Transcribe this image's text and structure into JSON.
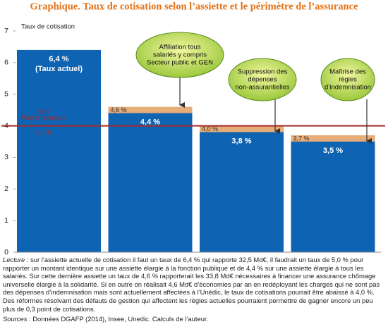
{
  "chart_data": {
    "type": "bar",
    "title": "Graphique. Taux de cotisation selon l’assiette et le périmètre de l’assurance",
    "y_label": "Taux de cotisation",
    "ylim": [
      0,
      7
    ],
    "yticks": [
      0,
      1,
      2,
      3,
      4,
      5,
      6,
      7
    ],
    "series": [
      {
        "color": "#e7ad78",
        "values": [
          null,
          4.6,
          4.0,
          3.7
        ],
        "value_labels": [
          null,
          "4,6 %",
          "4,0 %",
          "3,7 %"
        ]
      },
      {
        "color": "#0f63b3",
        "values": [
          6.4,
          4.4,
          3.8,
          3.5
        ],
        "value_labels": [
          "6,4 %",
          "4,4 %",
          "3,8 %",
          "3,5 %"
        ]
      }
    ],
    "current_rate_note": "(Taux actuel)",
    "reference_line": {
      "value": 4.0,
      "color": "#a52a2a",
      "label_lines": [
        "dont",
        "Part employeur"
      ],
      "value_label": "4,0 %"
    },
    "callouts": [
      {
        "lines": [
          "Affiliation tous",
          "salariés y compris",
          "Secteur public et GEN"
        ]
      },
      {
        "lines": [
          "Suppression des",
          "dépenses",
          "non-assurantielles"
        ]
      },
      {
        "lines": [
          "Maîtrise des",
          "règles",
          "d’indemnisation"
        ]
      }
    ],
    "lecture_label": "Lecture",
    "lecture_text": " : sur l’assiette actuelle de cotisation il faut un taux de 6,4 % qui rapporte 32,5 Md€, il faudrait un taux de 5,0 % pour rapporter un montant identique sur une assiette élargie à la fonction publique et de 4,4 % sur une assiette élargie à tous les salariés. Sur cette dernière assiette un taux de 4,6 % rapporterait les 33,8 Md€ nécessaires à financer une assurance chômage universelle élargie à la solidarité. Si en outre on réalisait 4,6 Md€ d’économies par an en redéployant les charges qui ne sont pas des dépenses d’indemnisation mais sont actuellement affectées à l’Unédic, le taux de cotisations pourrait être abaissé à 4,0 %. Des réformes résolvant des défauts de gestion qui affectent les règles actuelles pourraient permettre de gagner encore un peu plus de 0,3 point de cotisations.",
    "sources_label": "Sources",
    "sources_text": " : Données DGAFP (2014), Insee, Unedic. Calculs de l’auteur."
  }
}
